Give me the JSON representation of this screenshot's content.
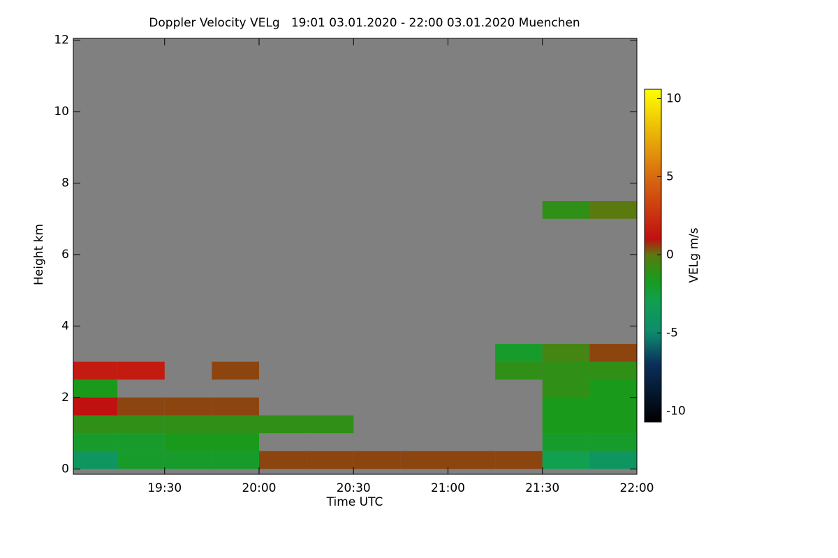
{
  "chart_data": {
    "type": "heatmap",
    "title": "Doppler Velocity VELg   19:01 03.01.2020 - 22:00 03.01.2020 Muenchen",
    "x_label": "Time UTC",
    "y_label": "Height km",
    "colorbar_label": "VELg m/s",
    "background_color": "#808080",
    "x": [
      1141,
      1155,
      1170,
      1185,
      1200,
      1215,
      1230,
      1245,
      1260,
      1275,
      1290,
      1305,
      1320
    ],
    "y": [
      0,
      0.5,
      1,
      1.5,
      2,
      2.5,
      3,
      3.5,
      7,
      7.5
    ],
    "values": [
      [
        -4,
        -2,
        -2,
        -2,
        0.5,
        0.5,
        0.5,
        0.5,
        0.5,
        0.5,
        -3,
        -4
      ],
      [
        -2,
        -2,
        -1.5,
        -1.5,
        null,
        null,
        null,
        null,
        null,
        null,
        -2,
        -2
      ],
      [
        -1,
        -1,
        -1,
        -1,
        -1,
        -1,
        null,
        null,
        null,
        null,
        -1.5,
        -1.5
      ],
      [
        1,
        0.5,
        0.5,
        0.5,
        null,
        null,
        null,
        null,
        null,
        null,
        -1.5,
        -1.5
      ],
      [
        -1.5,
        null,
        null,
        null,
        null,
        null,
        null,
        null,
        null,
        null,
        -1,
        -1.5
      ],
      [
        1.5,
        1.5,
        null,
        0.5,
        null,
        null,
        null,
        null,
        null,
        -1,
        -1,
        -1
      ],
      [
        null,
        null,
        null,
        null,
        null,
        null,
        null,
        null,
        null,
        -2,
        -0.5,
        0.5
      ],
      [
        null,
        null,
        null,
        null,
        null,
        null,
        null,
        null,
        null,
        null,
        null,
        null
      ],
      [
        null,
        null,
        null,
        null,
        null,
        null,
        null,
        null,
        null,
        null,
        -1,
        0
      ]
    ],
    "xlim": [
      1141,
      1320
    ],
    "xticks": [
      {
        "value": 1170,
        "label": "19:30"
      },
      {
        "value": 1200,
        "label": "20:00"
      },
      {
        "value": 1230,
        "label": "20:30"
      },
      {
        "value": 1260,
        "label": "21:00"
      },
      {
        "value": 1290,
        "label": "21:30"
      },
      {
        "value": 1320,
        "label": "22:00"
      }
    ],
    "ylim": [
      -0.15,
      12.05
    ],
    "yticks": [
      0,
      2,
      4,
      6,
      8,
      10,
      12
    ],
    "clim": [
      -10.7,
      10.6
    ],
    "cticks": [
      -10,
      -5,
      0,
      5,
      10
    ],
    "colorscale": [
      [
        -10.7,
        "#000000"
      ],
      [
        -7,
        "#0a2f5a"
      ],
      [
        -5,
        "#0e8a6e"
      ],
      [
        -3,
        "#10a050"
      ],
      [
        -1.5,
        "#1a9a1a"
      ],
      [
        0,
        "#5a7a10"
      ],
      [
        1,
        "#c01010"
      ],
      [
        5,
        "#d86a10"
      ],
      [
        10.6,
        "#ffff00"
      ]
    ]
  }
}
